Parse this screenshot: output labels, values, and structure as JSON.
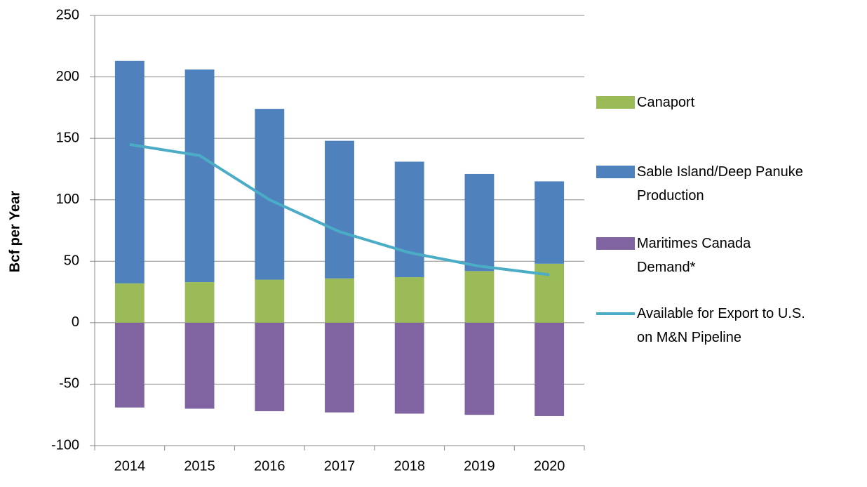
{
  "chart_data": {
    "type": "bar",
    "stacked": true,
    "y_label": "Bcf per Year",
    "categories": [
      "2014",
      "2015",
      "2016",
      "2017",
      "2018",
      "2019",
      "2020"
    ],
    "series": [
      {
        "name": "Canaport",
        "color": "#9bbb59",
        "values": [
          32,
          33,
          35,
          36,
          37,
          42,
          48
        ]
      },
      {
        "name": "Sable Island/Deep Panuke\nProduction",
        "color": "#4f81bd",
        "values": [
          181,
          173,
          139,
          112,
          94,
          79,
          67
        ]
      },
      {
        "name": "Maritimes Canada\nDemand*",
        "color": "#8064a2",
        "values": [
          -69,
          -70,
          -72,
          -73,
          -74,
          -75,
          -76
        ]
      },
      {
        "name": "Available for Export to U.S.\non M&N Pipeline",
        "color": "#4bacc6",
        "type": "line",
        "values": [
          145,
          136,
          100,
          74,
          57,
          46,
          39
        ]
      }
    ],
    "ylim": [
      -100,
      250
    ],
    "yticks": [
      -100,
      -50,
      0,
      50,
      100,
      150,
      200,
      250
    ],
    "grid": true
  }
}
